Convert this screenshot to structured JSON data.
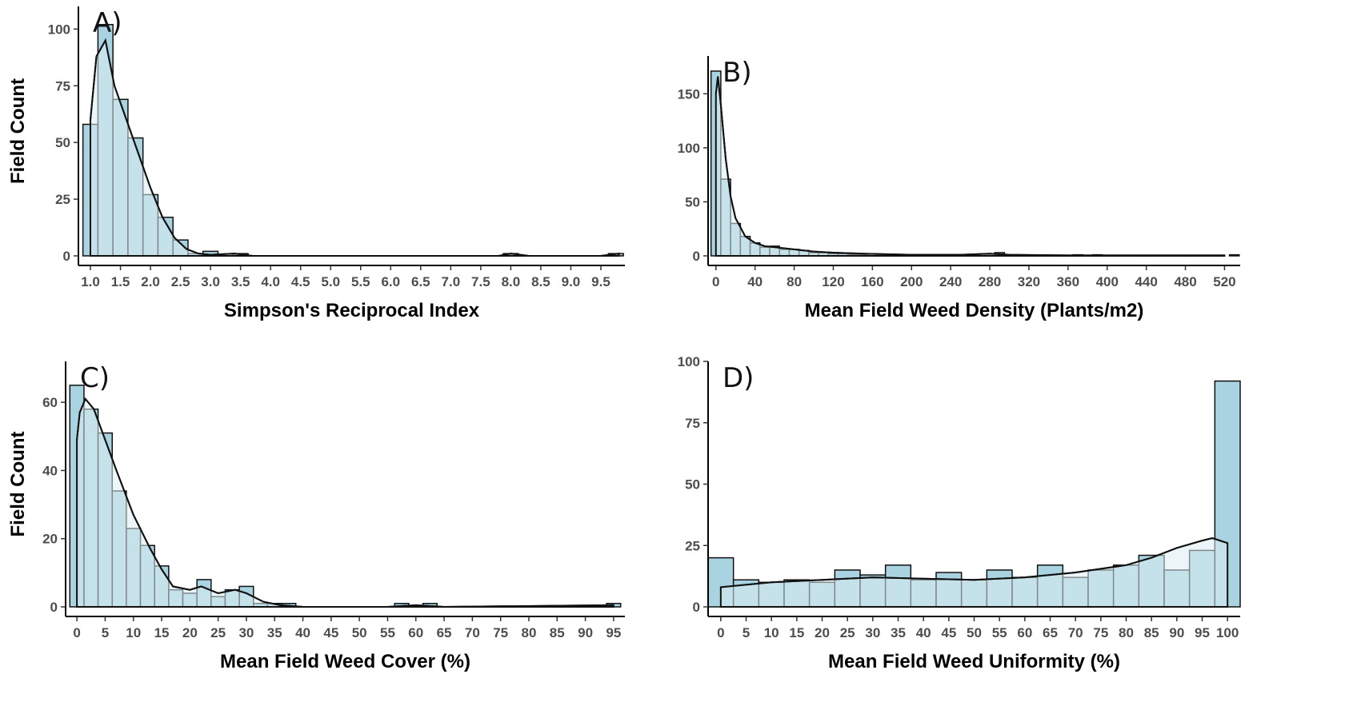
{
  "colors": {
    "bar_fill": "#a9d3e0",
    "bar_stroke": "#111111",
    "axis": "#000000",
    "tick_text": "#4d4d4d"
  },
  "chart_data": [
    {
      "type": "bar",
      "panel_label": "A)",
      "xlabel": "Simpson's Reciprocal Index",
      "ylabel": "Field Count",
      "grid": false,
      "xlim": [
        0.8,
        9.9
      ],
      "ylim": [
        0,
        110
      ],
      "bin_width": 0.25,
      "bins_start": [
        0.875,
        1.125,
        1.375,
        1.625,
        1.875,
        2.125,
        2.375,
        2.625,
        2.875,
        3.125,
        3.375,
        3.625,
        7.875,
        9.625
      ],
      "values": [
        58,
        102,
        69,
        52,
        27,
        17,
        7,
        1,
        2,
        0,
        1,
        0,
        1,
        1
      ],
      "x_ticks": [
        "1.0",
        "1.5",
        "2.0",
        "2.5",
        "3.0",
        "3.5",
        "4.0",
        "4.5",
        "5.0",
        "5.5",
        "6.0",
        "6.5",
        "7.0",
        "7.5",
        "8.0",
        "8.5",
        "9.0",
        "9.5"
      ],
      "y_ticks": [
        0,
        25,
        50,
        75,
        100
      ],
      "density_curve": {
        "x": [
          1.0,
          1.1,
          1.25,
          1.4,
          1.6,
          1.8,
          2.0,
          2.2,
          2.4,
          2.6,
          2.8,
          3.0,
          3.4,
          3.7,
          4.5,
          7.8,
          8.0,
          8.3,
          9.5,
          9.8
        ],
        "y": [
          60,
          88,
          95,
          75,
          60,
          45,
          30,
          17,
          8,
          3,
          1,
          0.5,
          1,
          0,
          0,
          0,
          1,
          0,
          0,
          1
        ]
      }
    },
    {
      "type": "bar",
      "panel_label": "B)",
      "xlabel": "Mean Field Weed Density (Plants/m2)",
      "ylabel": "",
      "grid": false,
      "xlim": [
        -8,
        536
      ],
      "ylim": [
        0,
        185
      ],
      "bin_width": 10,
      "bins_start": [
        -5,
        5,
        15,
        25,
        35,
        45,
        55,
        65,
        75,
        85,
        95,
        105,
        115,
        125,
        135,
        145,
        155,
        175,
        195,
        215,
        235,
        255,
        275,
        285,
        295,
        365,
        385,
        525
      ],
      "values": [
        171,
        71,
        30,
        18,
        12,
        8,
        9,
        6,
        6,
        5,
        3,
        3,
        2,
        2,
        1,
        1,
        2,
        1,
        1,
        1,
        0,
        1,
        2,
        3,
        0,
        1,
        1,
        1
      ],
      "x_ticks": [
        "0",
        "40",
        "80",
        "120",
        "160",
        "200",
        "240",
        "280",
        "320",
        "360",
        "400",
        "440",
        "480",
        "520"
      ],
      "y_ticks": [
        0,
        50,
        100,
        150
      ],
      "density_curve": {
        "x": [
          0,
          2,
          5,
          10,
          15,
          20,
          30,
          40,
          50,
          60,
          80,
          100,
          120,
          150,
          200,
          250,
          280,
          300,
          360,
          400,
          520
        ],
        "y": [
          150,
          166,
          140,
          90,
          55,
          35,
          18,
          12,
          9,
          8,
          6,
          4,
          3,
          2,
          1,
          1,
          2,
          1,
          0.5,
          0.5,
          0.5
        ]
      }
    },
    {
      "type": "bar",
      "panel_label": "C)",
      "xlabel": "Mean Field Weed Cover (%)",
      "ylabel": "Field Count",
      "grid": false,
      "xlim": [
        -2,
        97
      ],
      "ylim": [
        0,
        72
      ],
      "bin_width": 2.5,
      "bins_start": [
        -1.25,
        1.25,
        3.75,
        6.25,
        8.75,
        11.25,
        13.75,
        16.25,
        18.75,
        21.25,
        23.75,
        26.25,
        28.75,
        31.25,
        33.75,
        36.25,
        56.25,
        58.75,
        61.25,
        93.75
      ],
      "values": [
        65,
        58,
        51,
        34,
        23,
        18,
        12,
        5,
        4,
        8,
        3,
        5,
        6,
        1,
        1,
        1,
        1,
        0,
        1,
        1
      ],
      "x_ticks": [
        "0",
        "5",
        "10",
        "15",
        "20",
        "25",
        "30",
        "35",
        "40",
        "45",
        "50",
        "55",
        "60",
        "65",
        "70",
        "75",
        "80",
        "85",
        "90",
        "95"
      ],
      "y_ticks": [
        0,
        20,
        40,
        60
      ],
      "density_curve": {
        "x": [
          0,
          0.5,
          1.5,
          3,
          5,
          7,
          10,
          13,
          15,
          17,
          20,
          22,
          25,
          28,
          30,
          33,
          36,
          40,
          55,
          60,
          65,
          95
        ],
        "y": [
          49,
          57,
          61,
          58,
          49,
          40,
          27,
          17,
          11,
          6,
          5,
          6,
          4,
          5,
          4,
          1.5,
          0.5,
          0,
          0,
          0.5,
          0,
          0.5
        ]
      }
    },
    {
      "type": "bar",
      "panel_label": "D)",
      "xlabel": "Mean Field Weed Uniformity (%)",
      "ylabel": "",
      "grid": false,
      "xlim": [
        -2.5,
        102.5
      ],
      "ylim": [
        0,
        100
      ],
      "bin_width": 5,
      "bins_start": [
        -2.5,
        2.5,
        7.5,
        12.5,
        17.5,
        22.5,
        27.5,
        32.5,
        37.5,
        42.5,
        47.5,
        52.5,
        57.5,
        62.5,
        67.5,
        72.5,
        77.5,
        82.5,
        87.5,
        92.5,
        97.5
      ],
      "values": [
        20,
        11,
        10,
        11,
        10,
        15,
        13,
        17,
        11,
        14,
        11,
        15,
        12,
        17,
        12,
        15,
        17,
        21,
        15,
        23,
        92
      ],
      "x_ticks": [
        "0",
        "5",
        "10",
        "15",
        "20",
        "25",
        "30",
        "35",
        "40",
        "45",
        "50",
        "55",
        "60",
        "65",
        "70",
        "75",
        "80",
        "85",
        "90",
        "95",
        "100"
      ],
      "y_ticks": [
        0,
        25,
        50,
        75,
        100
      ],
      "density_curve": {
        "x": [
          0,
          10,
          20,
          30,
          40,
          50,
          60,
          70,
          80,
          85,
          90,
          95,
          97,
          100
        ],
        "y": [
          8,
          10,
          11,
          12,
          11.5,
          11,
          12,
          14,
          17,
          20,
          24,
          27,
          28,
          26
        ]
      }
    }
  ]
}
